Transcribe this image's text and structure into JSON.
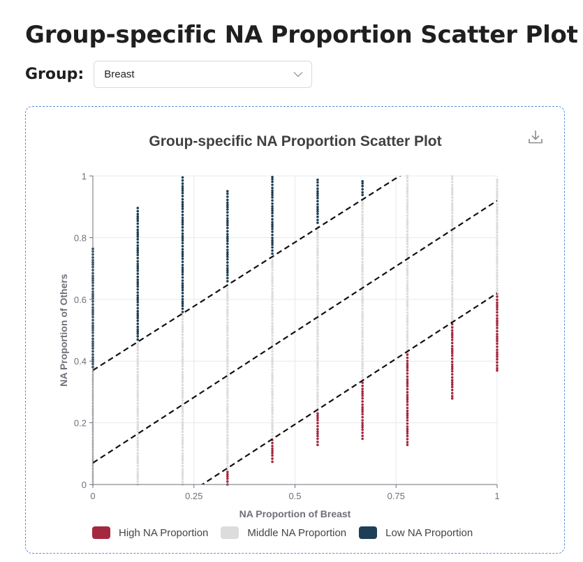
{
  "page": {
    "title": "Group-specific NA Proportion Scatter Plot",
    "group_label": "Group:",
    "group_value": "Breast"
  },
  "icons": {
    "help": "question-circle-icon",
    "dropdown": "chevron-down-icon",
    "download": "download-icon"
  },
  "colors": {
    "high": "#a4283f",
    "middle": "#dcdcdc",
    "low": "#1e3f55"
  },
  "chart_data": {
    "type": "scatter",
    "title": "Group-specific NA Proportion Scatter Plot",
    "xlabel": "NA Proportion of Breast",
    "ylabel": "NA Proportion of Others",
    "xlim": [
      0,
      1
    ],
    "ylim": [
      0,
      1
    ],
    "x_ticks": [
      "0",
      "0.25",
      "0.5",
      "0.75",
      "1"
    ],
    "y_ticks": [
      "0",
      "0.2",
      "0.4",
      "0.6",
      "0.8",
      "1"
    ],
    "grid": true,
    "legend_position": "bottom",
    "reference_lines": [
      {
        "intercept": 0.37,
        "slope": 0.83
      },
      {
        "intercept": 0.07,
        "slope": 0.85
      },
      {
        "intercept": -0.23,
        "slope": 0.85
      }
    ],
    "series": [
      {
        "name": "High NA Proportion",
        "color": "#a4283f",
        "columns": [
          {
            "x": 0.333,
            "ranges": [
              [
                0.0,
                0.05
              ]
            ]
          },
          {
            "x": 0.444,
            "ranges": [
              [
                0.075,
                0.15
              ]
            ]
          },
          {
            "x": 0.556,
            "ranges": [
              [
                0.13,
                0.24
              ]
            ]
          },
          {
            "x": 0.667,
            "ranges": [
              [
                0.15,
                0.34
              ]
            ]
          },
          {
            "x": 0.778,
            "ranges": [
              [
                0.13,
                0.43
              ]
            ]
          },
          {
            "x": 0.889,
            "ranges": [
              [
                0.28,
                0.53
              ]
            ]
          },
          {
            "x": 1.0,
            "ranges": [
              [
                0.37,
                0.62
              ]
            ]
          }
        ]
      },
      {
        "name": "Middle NA Proportion",
        "color": "#dcdcdc",
        "columns": [
          {
            "x": 0.0,
            "ranges": [
              [
                0.0,
                0.37
              ]
            ]
          },
          {
            "x": 0.111,
            "ranges": [
              [
                0.0,
                0.47
              ]
            ]
          },
          {
            "x": 0.222,
            "ranges": [
              [
                0.0,
                0.56
              ]
            ]
          },
          {
            "x": 0.333,
            "ranges": [
              [
                0.05,
                0.65
              ]
            ]
          },
          {
            "x": 0.444,
            "ranges": [
              [
                0.15,
                0.74
              ]
            ]
          },
          {
            "x": 0.556,
            "ranges": [
              [
                0.24,
                0.84
              ]
            ]
          },
          {
            "x": 0.667,
            "ranges": [
              [
                0.34,
                0.93
              ]
            ]
          },
          {
            "x": 0.778,
            "ranges": [
              [
                0.43,
                1.0
              ]
            ]
          },
          {
            "x": 0.889,
            "ranges": [
              [
                0.53,
                1.0
              ]
            ]
          },
          {
            "x": 1.0,
            "ranges": [
              [
                0.62,
                0.99
              ]
            ]
          }
        ]
      },
      {
        "name": "Low NA Proportion",
        "color": "#1e3f55",
        "columns": [
          {
            "x": 0.0,
            "ranges": [
              [
                0.38,
                0.77
              ]
            ]
          },
          {
            "x": 0.111,
            "ranges": [
              [
                0.47,
                0.9
              ]
            ]
          },
          {
            "x": 0.222,
            "ranges": [
              [
                0.56,
                1.0
              ]
            ]
          },
          {
            "x": 0.333,
            "ranges": [
              [
                0.66,
                0.95
              ]
            ]
          },
          {
            "x": 0.444,
            "ranges": [
              [
                0.75,
                1.0
              ]
            ]
          },
          {
            "x": 0.556,
            "ranges": [
              [
                0.85,
                0.99
              ]
            ]
          },
          {
            "x": 0.667,
            "ranges": [
              [
                0.94,
                0.99
              ]
            ]
          }
        ]
      }
    ]
  }
}
